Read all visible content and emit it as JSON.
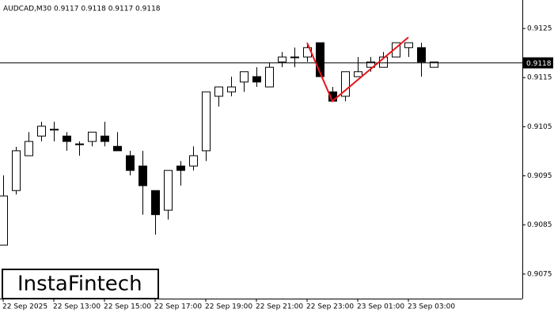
{
  "chart_data": {
    "type": "candlestick",
    "title": "AUDCAD,M30  0.9117 0.9118 0.9117 0.9118",
    "brand": "InstaFintech",
    "categories": [
      "22 Sep 2025",
      null,
      null,
      null,
      "22 Sep 13:00",
      null,
      null,
      null,
      "22 Sep 15:00",
      null,
      null,
      null,
      "22 Sep 17:00",
      null,
      null,
      null,
      "22 Sep 19:00",
      null,
      null,
      null,
      "22 Sep 21:00",
      null,
      null,
      null,
      "22 Sep 23:00",
      null,
      null,
      null,
      "23 Sep 01:00",
      null,
      null,
      null,
      "23 Sep 03:00",
      null,
      null
    ],
    "open": [
      0.90809,
      0.9092,
      0.90991,
      0.91031,
      0.91043,
      0.91031,
      0.91015,
      0.9102,
      0.91031,
      0.9101,
      0.90991,
      0.9097,
      0.9092,
      0.9088,
      0.9097,
      0.9097,
      0.91001,
      0.91112,
      0.91121,
      0.91141,
      0.91152,
      0.91131,
      0.91182,
      0.91192,
      0.91192,
      0.91221,
      0.91121,
      0.91112,
      0.91152,
      0.91171,
      0.91171,
      0.91192,
      0.91211,
      0.91211,
      0.91171
    ],
    "high": [
      0.90951,
      0.91009,
      0.91039,
      0.9106,
      0.9106,
      0.91039,
      0.9102,
      0.91039,
      0.9106,
      0.91039,
      0.91001,
      0.91001,
      0.9092,
      0.90961,
      0.9098,
      0.9101,
      0.91121,
      0.91131,
      0.91152,
      0.91162,
      0.91171,
      0.91181,
      0.91202,
      0.91211,
      0.91221,
      0.91221,
      0.91131,
      0.91162,
      0.91192,
      0.91192,
      0.91202,
      0.91221,
      0.91221,
      0.91221,
      0.91182
    ],
    "low": [
      0.90809,
      0.90912,
      0.90991,
      0.9102,
      0.9102,
      0.91001,
      0.90991,
      0.9101,
      0.9101,
      0.91001,
      0.90951,
      0.90871,
      0.9083,
      0.90861,
      0.9093,
      0.90961,
      0.9098,
      0.91091,
      0.91112,
      0.91121,
      0.91131,
      0.91131,
      0.91171,
      0.91171,
      0.91182,
      0.91152,
      0.91102,
      0.91102,
      0.91152,
      0.91162,
      0.91171,
      0.91192,
      0.91192,
      0.91152,
      0.91171
    ],
    "close": [
      0.90909,
      0.91001,
      0.9102,
      0.91051,
      0.91045,
      0.9102,
      0.91015,
      0.91039,
      0.9102,
      0.91001,
      0.90961,
      0.9093,
      0.90871,
      0.90961,
      0.90961,
      0.90991,
      0.91121,
      0.91131,
      0.91131,
      0.91162,
      0.91141,
      0.91171,
      0.91192,
      0.91192,
      0.91211,
      0.91152,
      0.91102,
      0.91162,
      0.91162,
      0.91182,
      0.91192,
      0.91221,
      0.91221,
      0.91182,
      0.91182
    ],
    "current_price": 0.9118,
    "pattern": {
      "color": "#e8161b",
      "index": [
        24,
        26,
        32
      ],
      "values": [
        0.91221,
        0.91102,
        0.91232
      ]
    },
    "ylim": [
      0.907,
      0.91308
    ],
    "yticks": [
      0.9125,
      0.9115,
      0.9105,
      0.9095,
      0.9085,
      0.9075
    ]
  }
}
